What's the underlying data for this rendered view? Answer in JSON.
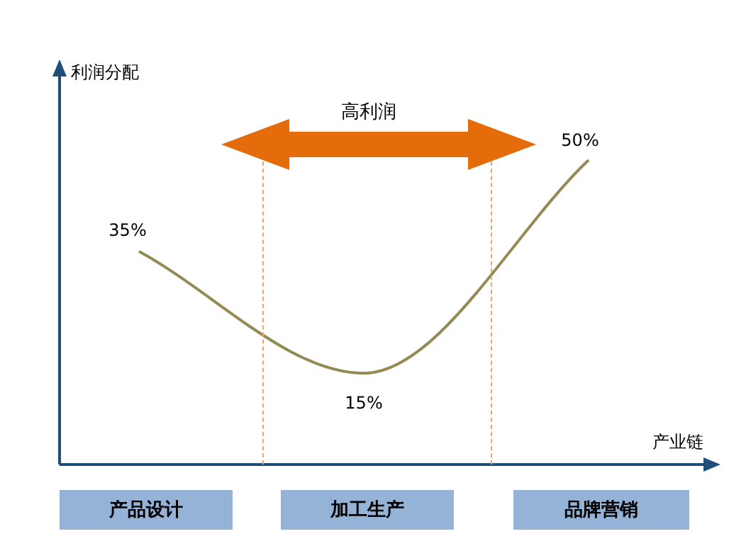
{
  "chart_data": {
    "type": "line",
    "xlabel": "产业链",
    "ylabel": "利润分配",
    "categories": [
      null,
      null,
      null
    ],
    "series": [
      {
        "color": "#948a54",
        "values": [
          35,
          15,
          50
        ],
        "value_labels": [
          "35%",
          "15%",
          "50%"
        ]
      }
    ],
    "annotations": [
      "高利润",
      "产品设计",
      "加工生产",
      "品牌营销"
    ]
  }
}
